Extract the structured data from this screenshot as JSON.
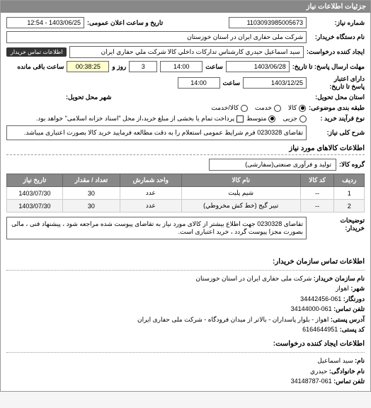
{
  "titlebar": "جزئیات اطلاعات نیاز",
  "fields": {
    "req_no_label": "شماره نیاز:",
    "req_no": "1103093985005673",
    "announce_label": "تاریخ و ساعت اعلان عمومی:",
    "announce": "1403/06/25 - 12:54",
    "org_label": "نام دستگاه خریدار:",
    "org": "شرکت ملی حفاری ایران در استان خوزستان",
    "req_creator_label": "ایجاد کننده درخواست:",
    "req_creator": "سيد اسماعيل حيدري كارشناس تداركات داخلي كالا شركت ملي حفاري ايران",
    "info_btn": "اطلاعات تماس خریدار",
    "reply_to_label": "مهلت ارسال پاسخ: تا تاریخ:",
    "reply_date": "1403/06/28",
    "reply_time_label": "ساعت",
    "reply_time": "14:00",
    "remain_days": "3",
    "remain_days_label": "روز و",
    "remain_time": "00:38:25",
    "remain_label": "ساعت باقی مانده",
    "valid_to_label": "دارای اعتبار\nپاسخ تا تاریخ:",
    "valid_date": "1403/12/25",
    "valid_time_label": "ساعت",
    "valid_time": "14:00",
    "ostan_label": "استان محل تحویل:",
    "city_label": "شهر محل تحویل:",
    "packing_label": "طبقه بندی موضوعی:",
    "pack_opt1": "کالا",
    "pack_opt2": "خدمت",
    "pack_opt3": "کالا/خدمت",
    "buy_type_label": "نوع فرآیند خرید :",
    "buy_opt1": "جزیی",
    "buy_opt2": "متوسط",
    "buy_note": "پرداخت تمام یا بخشی از مبلغ خرید،از محل \"اسناد خزانه اسلامی\" خواهد بود.",
    "summary_label": "شرح کلی نیاز:",
    "summary": "تقاضای 0230328 فرم شرایط عمومی استعلام را به دقت مطالعه فرمایید خرید کالا بصورت اعتباری میباشد.",
    "goods_header": "اطلاعات کالاهای مورد نیاز",
    "group_label": "گروه کالا:",
    "group": "تولید و فرآوری صنعتی(سفارشی)"
  },
  "table": {
    "columns": [
      "ردیف",
      "کد کالا",
      "نام کالا",
      "واحد شمارش",
      "تعداد / مقدار",
      "تاریخ نیاز"
    ],
    "rows": [
      [
        "1",
        "--",
        "شیم پلیت",
        "عدد",
        "30",
        "1403/07/30"
      ],
      [
        "2",
        "--",
        "تبير گيج (خط كش مخروطي)",
        "عدد",
        "30",
        "1403/07/30"
      ]
    ]
  },
  "notes": {
    "label": "توضیحات\nخریدار:",
    "text": "تقاضای 0230328 جهت اطلاع بیشتر از کالای مورد نیاز به تقاضای پیوست شده مراجعه شود ، پیشنهاد فنی ، مالی بصورت مجزا پیوست گردد ، خرید اعتباری است."
  },
  "contact": {
    "header": "اطلاعات تماس سازمان خریدار:",
    "org_label": "نام سازمان خریدار:",
    "org": "شرکت ملی حفاری ایران در استان خوزستان",
    "city_label": "شهر:",
    "city": "اهواز",
    "fax_label": "دورنگار:",
    "fax": "061-34442456",
    "phone_label": "تلفن تماس:",
    "phone": "061-34144000",
    "addr_label": "آدرس پستی:",
    "addr": "اهواز - بلوار پاسداران - بالاتر از میدان فرودگاه - شرکت ملی حفاری ایران",
    "post_label": "کد پستی:",
    "post": "6164644951",
    "creator_header": "اطلاعات ایجاد کننده درخواست:",
    "name_label": "نام:",
    "name": "سيد اسماعيل",
    "family_label": "نام خانوادگی:",
    "family": "حيدري",
    "cphone_label": "تلفن تماس:",
    "cphone": "061-34148787"
  }
}
